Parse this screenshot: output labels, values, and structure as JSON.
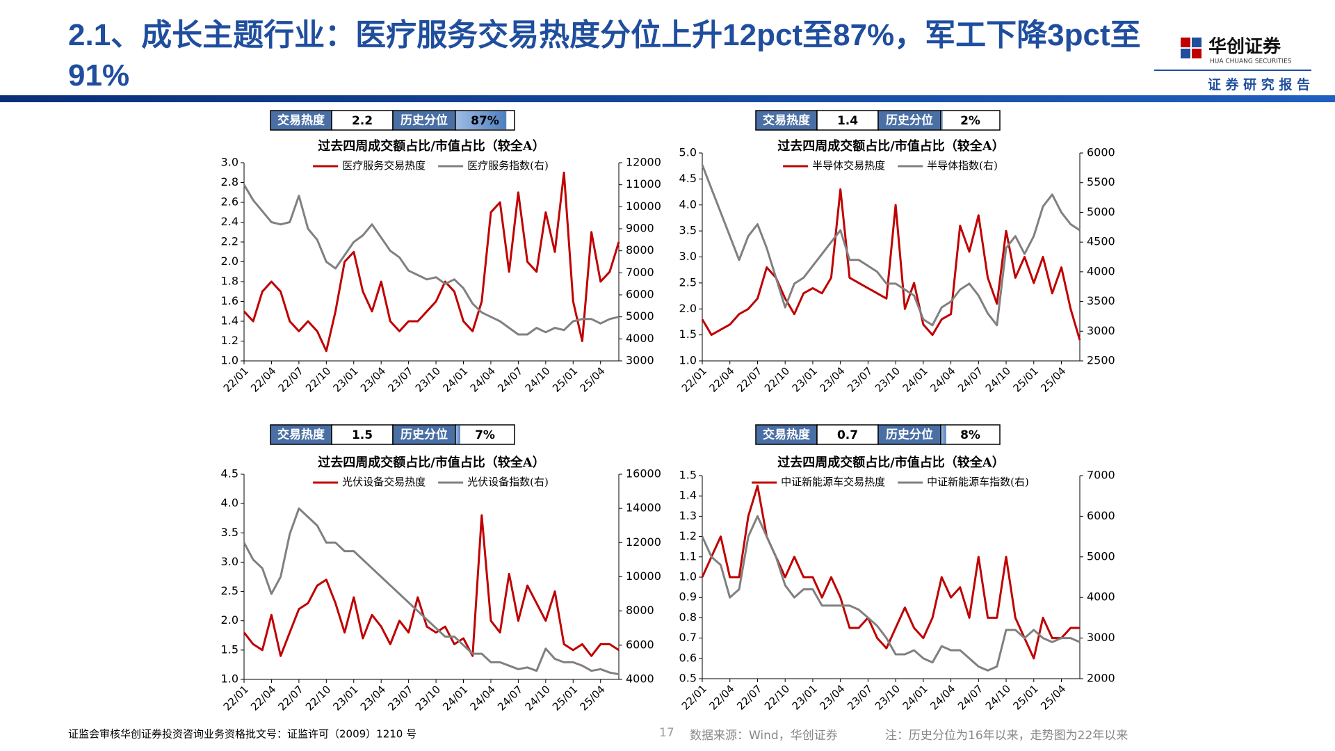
{
  "header": {
    "title": "2.1、成长主题行业：医疗服务交易热度分位上升12pct至87%，军工下降3pct至91%",
    "logo_name": "华创证券",
    "logo_en": "HUA CHUANG SECURITIES",
    "subtitle": "证 券 研 究 报 告"
  },
  "chart_data": [
    {
      "type": "line",
      "title": "过去四周成交额占比/市值占比（较全A）",
      "stats": {
        "labels": [
          "交易热度",
          "历史分位"
        ],
        "heat": "2.2",
        "percentile": 87,
        "percentile_label": "87%"
      },
      "categories": [
        "22/01",
        null,
        null,
        "22/04",
        null,
        null,
        "22/07",
        null,
        null,
        "22/10",
        null,
        null,
        "23/01",
        null,
        null,
        "23/04",
        null,
        null,
        "23/07",
        null,
        null,
        "23/10",
        null,
        null,
        "24/01",
        null,
        null,
        "24/04",
        null,
        null,
        "24/07",
        null,
        null,
        "24/10",
        null,
        null,
        "25/01",
        null,
        null,
        "25/04",
        null,
        null
      ],
      "series": [
        {
          "name": "医疗服务交易热度",
          "color": "#c00000",
          "values": [
            1.5,
            1.4,
            1.7,
            1.8,
            1.7,
            1.4,
            1.3,
            1.4,
            1.3,
            1.1,
            1.5,
            2.0,
            2.1,
            1.7,
            1.5,
            1.8,
            1.4,
            1.3,
            1.4,
            1.4,
            1.5,
            1.6,
            1.8,
            1.7,
            1.4,
            1.3,
            1.6,
            2.5,
            2.6,
            1.9,
            2.7,
            2.0,
            1.9,
            2.5,
            2.1,
            2.9,
            1.6,
            1.2,
            2.3,
            1.8,
            1.9,
            2.2
          ]
        },
        {
          "name": "医疗服务指数(右)",
          "color": "#808080",
          "axis": "y2",
          "values": [
            11000,
            10300,
            9800,
            9300,
            9200,
            9300,
            10500,
            9000,
            8500,
            7500,
            7200,
            7800,
            8400,
            8700,
            9200,
            8600,
            8000,
            7700,
            7100,
            6900,
            6700,
            6800,
            6500,
            6700,
            6300,
            5600,
            5200,
            5000,
            4800,
            4500,
            4200,
            4200,
            4500,
            4300,
            4500,
            4400,
            4800,
            4900,
            4900,
            4700,
            4900,
            5000
          ]
        }
      ],
      "ylim": [
        1.0,
        3.0
      ],
      "yticks": [
        {
          "value": 1.0,
          "label": "1.0"
        },
        1.2,
        1.4,
        1.6,
        1.8,
        {
          "value": 2.0,
          "label": "2.0"
        },
        2.2,
        2.4,
        2.6,
        2.8,
        {
          "value": 3.0,
          "label": "3.0"
        }
      ],
      "y2lim": [
        3000,
        12000
      ],
      "y2ticks": [
        3000,
        4000,
        5000,
        6000,
        7000,
        8000,
        9000,
        10000,
        11000,
        12000
      ]
    },
    {
      "type": "line",
      "title": "过去四周成交额占比/市值占比（较全A）",
      "stats": {
        "labels": [
          "交易热度",
          "历史分位"
        ],
        "heat": "1.4",
        "percentile": 2,
        "percentile_label": "2%"
      },
      "categories": [
        "22/01",
        null,
        null,
        "22/04",
        null,
        null,
        "22/07",
        null,
        null,
        "22/10",
        null,
        null,
        "23/01",
        null,
        null,
        "23/04",
        null,
        null,
        "23/07",
        null,
        null,
        "23/10",
        null,
        null,
        "24/01",
        null,
        null,
        "24/04",
        null,
        null,
        "24/07",
        null,
        null,
        "24/10",
        null,
        null,
        "25/01",
        null,
        null,
        "25/04",
        null,
        null
      ],
      "series": [
        {
          "name": "半导体交易热度",
          "color": "#c00000",
          "values": [
            1.8,
            1.5,
            1.6,
            1.7,
            1.9,
            2.0,
            2.2,
            2.8,
            2.6,
            2.2,
            1.9,
            2.3,
            2.4,
            2.3,
            2.6,
            4.3,
            2.6,
            2.5,
            2.4,
            2.3,
            2.2,
            4.0,
            2.0,
            2.5,
            1.7,
            1.5,
            1.8,
            1.9,
            3.6,
            3.1,
            3.8,
            2.6,
            2.1,
            3.5,
            2.6,
            3.0,
            2.5,
            3.0,
            2.3,
            2.8,
            2.0,
            1.4
          ]
        },
        {
          "name": "半导体指数(右)",
          "color": "#808080",
          "axis": "y2",
          "values": [
            5800,
            5400,
            5000,
            4600,
            4200,
            4600,
            4800,
            4400,
            3900,
            3400,
            3800,
            3900,
            4100,
            4300,
            4500,
            4700,
            4200,
            4200,
            4100,
            4000,
            3800,
            3800,
            3700,
            3600,
            3200,
            3100,
            3400,
            3500,
            3700,
            3800,
            3600,
            3300,
            3100,
            4400,
            4600,
            4300,
            4600,
            5100,
            5300,
            5000,
            4800,
            4700
          ]
        }
      ],
      "ylim": [
        1.0,
        5.0
      ],
      "yticks": [
        {
          "value": 1.0,
          "label": "1.0"
        },
        1.5,
        {
          "value": 2.0,
          "label": "2.0"
        },
        2.5,
        {
          "value": 3.0,
          "label": "3.0"
        },
        3.5,
        {
          "value": 4.0,
          "label": "4.0"
        },
        4.5,
        {
          "value": 5.0,
          "label": "5.0"
        }
      ],
      "y2lim": [
        2500,
        6000
      ],
      "y2ticks": [
        2500,
        3000,
        3500,
        4000,
        4500,
        5000,
        5500,
        6000
      ]
    },
    {
      "type": "line",
      "title": "过去四周成交额占比/市值占比（较全A）",
      "stats": {
        "labels": [
          "交易热度",
          "历史分位"
        ],
        "heat": "1.5",
        "percentile": 7,
        "percentile_label": "7%"
      },
      "categories": [
        "22/01",
        null,
        null,
        "22/04",
        null,
        null,
        "22/07",
        null,
        null,
        "22/10",
        null,
        null,
        "23/01",
        null,
        null,
        "23/04",
        null,
        null,
        "23/07",
        null,
        null,
        "23/10",
        null,
        null,
        "24/01",
        null,
        null,
        "24/04",
        null,
        null,
        "24/07",
        null,
        null,
        "24/10",
        null,
        null,
        "25/01",
        null,
        null,
        "25/04",
        null,
        null
      ],
      "series": [
        {
          "name": "光伏设备交易热度",
          "color": "#c00000",
          "values": [
            1.8,
            1.6,
            1.5,
            2.1,
            1.4,
            1.8,
            2.2,
            2.3,
            2.6,
            2.7,
            2.3,
            1.8,
            2.4,
            1.7,
            2.1,
            1.9,
            1.6,
            2.0,
            1.8,
            2.4,
            1.9,
            1.8,
            1.9,
            1.6,
            1.7,
            1.4,
            3.8,
            2.0,
            1.8,
            2.8,
            2.0,
            2.6,
            2.3,
            2.0,
            2.5,
            1.6,
            1.5,
            1.6,
            1.4,
            1.6,
            1.6,
            1.5
          ]
        },
        {
          "name": "光伏设备指数(右)",
          "color": "#808080",
          "axis": "y2",
          "values": [
            12000,
            11000,
            10500,
            9000,
            10000,
            12500,
            14000,
            13500,
            13000,
            12000,
            12000,
            11500,
            11500,
            11000,
            10500,
            10000,
            9500,
            9000,
            8500,
            8000,
            7500,
            7000,
            6500,
            6500,
            6000,
            5500,
            5500,
            5000,
            5000,
            4800,
            4600,
            4700,
            4500,
            5800,
            5200,
            5000,
            5000,
            4800,
            4500,
            4600,
            4400,
            4300
          ]
        }
      ],
      "ylim": [
        1.0,
        4.5
      ],
      "yticks": [
        {
          "value": 1.0,
          "label": "1.0"
        },
        1.5,
        {
          "value": 2.0,
          "label": "2.0"
        },
        2.5,
        {
          "value": 3.0,
          "label": "3.0"
        },
        3.5,
        {
          "value": 4.0,
          "label": "4.0"
        },
        4.5
      ],
      "y2lim": [
        4000,
        16000
      ],
      "y2ticks": [
        4000,
        6000,
        8000,
        10000,
        12000,
        14000,
        16000
      ]
    },
    {
      "type": "line",
      "title": "过去四周成交额占比/市值占比（较全A）",
      "stats": {
        "labels": [
          "交易热度",
          "历史分位"
        ],
        "heat": "0.7",
        "percentile": 8,
        "percentile_label": "8%"
      },
      "categories": [
        "22/01",
        null,
        null,
        "22/04",
        null,
        null,
        "22/07",
        null,
        null,
        "22/10",
        null,
        null,
        "23/01",
        null,
        null,
        "23/04",
        null,
        null,
        "23/07",
        null,
        null,
        "23/10",
        null,
        null,
        "24/01",
        null,
        null,
        "24/04",
        null,
        null,
        "24/07",
        null,
        null,
        "24/10",
        null,
        null,
        "25/01",
        null,
        null,
        "25/04",
        null,
        null
      ],
      "series": [
        {
          "name": "中证新能源车交易热度",
          "color": "#c00000",
          "values": [
            1.0,
            1.1,
            1.2,
            1.0,
            1.0,
            1.3,
            1.45,
            1.2,
            1.1,
            1.0,
            1.1,
            1.0,
            1.0,
            0.9,
            1.0,
            0.9,
            0.75,
            0.75,
            0.8,
            0.7,
            0.65,
            0.75,
            0.85,
            0.75,
            0.7,
            0.8,
            1.0,
            0.9,
            0.95,
            0.8,
            1.1,
            0.8,
            0.8,
            1.1,
            0.8,
            0.7,
            0.6,
            0.8,
            0.7,
            0.7,
            0.75,
            0.75
          ]
        },
        {
          "name": "中证新能源车指数(右)",
          "color": "#808080",
          "axis": "y2",
          "values": [
            5500,
            5000,
            4800,
            4000,
            4200,
            5500,
            6000,
            5500,
            5000,
            4300,
            4000,
            4200,
            4200,
            3800,
            3800,
            3800,
            3800,
            3700,
            3500,
            3300,
            3000,
            2600,
            2600,
            2700,
            2500,
            2400,
            2800,
            2700,
            2700,
            2500,
            2300,
            2200,
            2300,
            3200,
            3200,
            3000,
            3200,
            3000,
            2900,
            3000,
            3000,
            2900
          ]
        }
      ],
      "ylim": [
        0.5,
        1.5
      ],
      "yticks": [
        0.5,
        0.6,
        0.7,
        0.8,
        0.9,
        {
          "value": 1.0,
          "label": "1.0"
        },
        1.1,
        1.2,
        1.3,
        1.4,
        1.5
      ],
      "y2lim": [
        2000,
        7000
      ],
      "y2ticks": [
        2000,
        3000,
        4000,
        5000,
        6000,
        7000
      ]
    }
  ],
  "footer": {
    "license": "证监会审核华创证券投资咨询业务资格批文号：证监许可（2009）1210 号",
    "page": "17",
    "source": "数据来源：Wind，华创证券",
    "note": "注：历史分位为16年以来，走势图为22年以来"
  }
}
